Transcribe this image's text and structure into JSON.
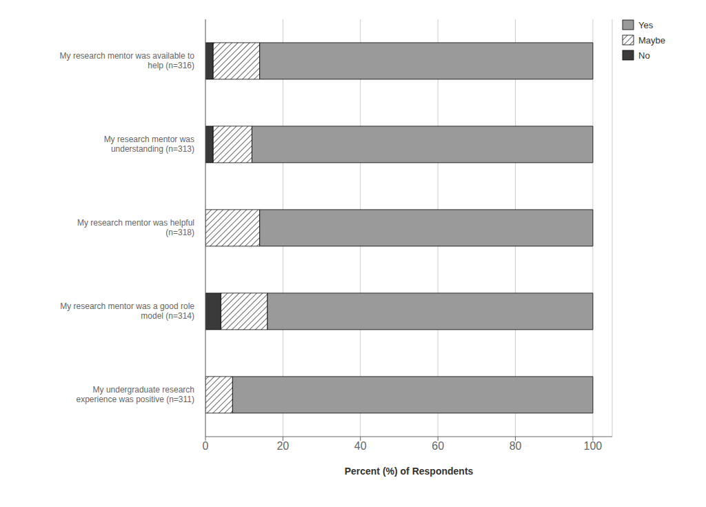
{
  "chart_data": {
    "type": "bar",
    "orientation": "horizontal",
    "stacked": true,
    "categories": [
      "My undergraduate research\nexperience was positive (n=311)",
      "My research mentor was a good role\nmodel (n=314)",
      "My research mentor was helpful\n(n=318)",
      "My research mentor was\nunderstanding (n=313)",
      "My research mentor was available to\nhelp (n=316)"
    ],
    "series": [
      {
        "name": "No",
        "color": "#3a3a3a",
        "values": [
          0,
          4,
          0,
          2,
          2
        ]
      },
      {
        "name": "Maybe",
        "color": "#ffffff",
        "values": [
          7,
          12,
          14,
          10,
          12
        ]
      },
      {
        "name": "Yes",
        "color": "#9a9a9a",
        "values": [
          93,
          84,
          86,
          88,
          86
        ]
      }
    ],
    "xlabel": "Percent (%) of Respondents",
    "xlim": [
      0,
      105
    ],
    "xticks": [
      0,
      20,
      40,
      60,
      80,
      100
    ],
    "grid": true,
    "legend": "right"
  }
}
